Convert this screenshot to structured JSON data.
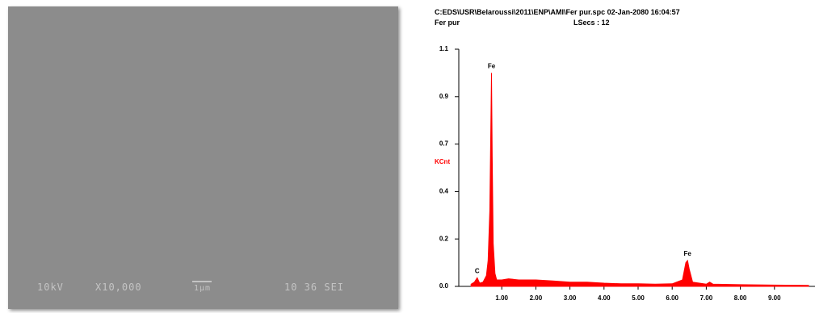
{
  "sem_image": {
    "voltage": "10kV",
    "magnification": "X10,000",
    "scale_bar": "1µm",
    "info": "10 36 SEI"
  },
  "chart_data": {
    "type": "area",
    "title": "C:EDS\\USR\\Belaroussi\\2011\\ENP\\AMI\\Fer pur.spc  02-Jan-2080 16:04:57",
    "subtitle": "Fer pur",
    "live_time": "LSecs : 12",
    "y_label": "KCnt",
    "color": "#ff0000",
    "xlim": [
      0,
      10.2
    ],
    "ylim": [
      0,
      1.1
    ],
    "xticks": [
      {
        "value": 1,
        "label": "1.00"
      },
      {
        "value": 2,
        "label": "2.00"
      },
      {
        "value": 3,
        "label": "3.00"
      },
      {
        "value": 4,
        "label": "4.00"
      },
      {
        "value": 5,
        "label": "5.00"
      },
      {
        "value": 6,
        "label": "6.00"
      },
      {
        "value": 7,
        "label": "7.00"
      },
      {
        "value": 8,
        "label": "8.00"
      },
      {
        "value": 9,
        "label": "9.00"
      }
    ],
    "yticks": [
      {
        "value": 0,
        "label": "0.0"
      },
      {
        "value": 0.22,
        "label": "0.2"
      },
      {
        "value": 0.44,
        "label": "0.4"
      },
      {
        "value": 0.66,
        "label": "0.7"
      },
      {
        "value": 0.88,
        "label": "0.9"
      },
      1.1
    ],
    "x": [
      0.1,
      0.2,
      0.28,
      0.35,
      0.45,
      0.55,
      0.6,
      0.65,
      0.7,
      0.72,
      0.75,
      0.8,
      0.85,
      1.0,
      1.2,
      1.5,
      2.0,
      2.5,
      3.0,
      3.5,
      4.0,
      4.5,
      5.0,
      5.5,
      6.0,
      6.3,
      6.4,
      6.45,
      6.5,
      6.6,
      7.0,
      7.1,
      7.2,
      8.0,
      9.0,
      10.0
    ],
    "values": [
      0.01,
      0.02,
      0.04,
      0.015,
      0.02,
      0.05,
      0.12,
      0.35,
      0.99,
      0.6,
      0.2,
      0.06,
      0.03,
      0.03,
      0.035,
      0.03,
      0.03,
      0.025,
      0.02,
      0.02,
      0.015,
      0.012,
      0.012,
      0.01,
      0.012,
      0.03,
      0.11,
      0.12,
      0.08,
      0.02,
      0.01,
      0.02,
      0.01,
      0.008,
      0.006,
      0.005
    ],
    "annotations": [
      {
        "text": "C",
        "x": 0.28,
        "y": 0.04
      },
      {
        "text": "Fe",
        "x": 0.7,
        "y": 0.99
      },
      {
        "text": "Fe",
        "x": 6.45,
        "y": 0.12
      }
    ]
  }
}
